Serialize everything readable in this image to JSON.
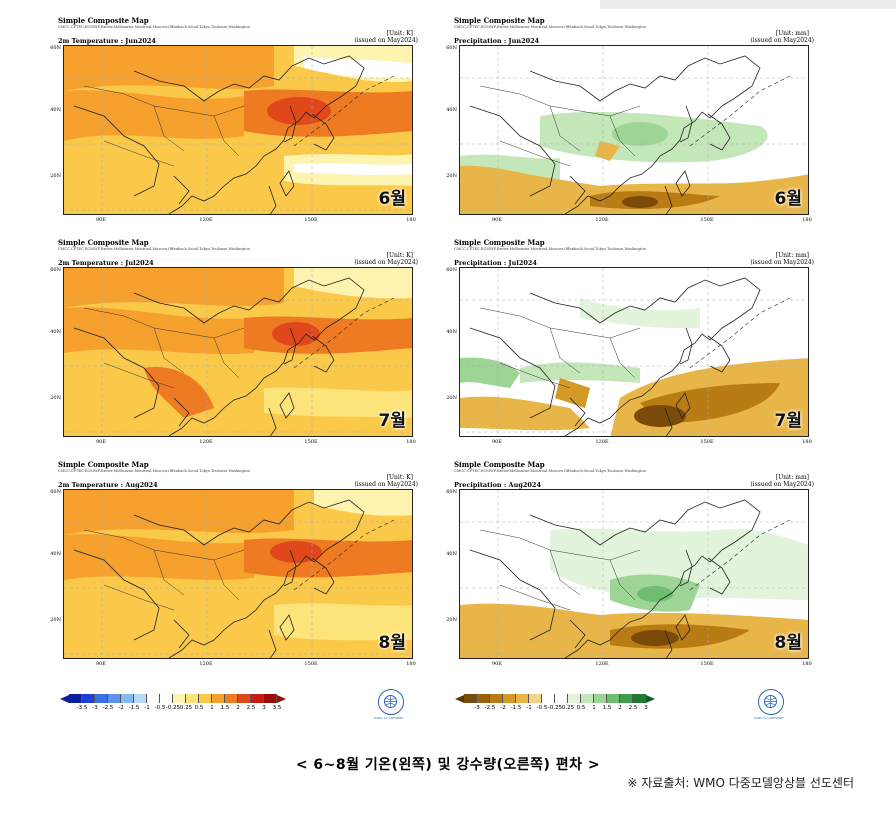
{
  "panels": [
    {
      "id": "t6",
      "title": "Simple Composite Map",
      "centers": "CMCC,CPTEC,ECMWF,Exeter,Melbourne,Montreal,Moscow,Offenbach,Seoul,Tokyo,Toulouse,Washington",
      "unit": "[Unit: K]",
      "variable": "2m Temperature : Jun2024",
      "issued": "(issued on May2024)",
      "month": "6월",
      "kind": "temp",
      "ylabels": [
        "60N",
        "40N",
        "20N"
      ],
      "xlabels": [
        "90E",
        "120E",
        "150E",
        "180"
      ]
    },
    {
      "id": "p6",
      "title": "Simple Composite Map",
      "centers": "CMCC,CPTEC,ECMWF,Exeter,Melbourne,Montreal,Moscow,Offenbach,Seoul,Tokyo,Toulouse,Washington",
      "unit": "[Unit: mm]",
      "variable": "Precipitation : Jun2024",
      "issued": "(issued on May2024)",
      "month": "6월",
      "kind": "precip",
      "ylabels": [
        "60N",
        "40N",
        "20N"
      ],
      "xlabels": [
        "90E",
        "120E",
        "150E",
        "180"
      ]
    },
    {
      "id": "t7",
      "title": "Simple Composite Map",
      "centers": "CMCC,CPTEC,ECMWF,Exeter,Melbourne,Montreal,Moscow,Offenbach,Seoul,Tokyo,Toulouse,Washington",
      "unit": "[Unit: K]",
      "variable": "2m Temperature : Jul2024",
      "issued": "(issued on May2024)",
      "month": "7월",
      "kind": "temp",
      "ylabels": [
        "60N",
        "40N",
        "20N"
      ],
      "xlabels": [
        "90E",
        "120E",
        "150E",
        "180"
      ]
    },
    {
      "id": "p7",
      "title": "Simple Composite Map",
      "centers": "CMCC,CPTEC,ECMWF,Exeter,Melbourne,Montreal,Moscow,Offenbach,Seoul,Tokyo,Toulouse,Washington",
      "unit": "[Unit: mm]",
      "variable": "Precipitation : Jul2024",
      "issued": "(issued on May2024)",
      "month": "7월",
      "kind": "precip",
      "ylabels": [
        "60N",
        "40N",
        "20N"
      ],
      "xlabels": [
        "90E",
        "120E",
        "150E",
        "180"
      ]
    },
    {
      "id": "t8",
      "title": "Simple Composite Map",
      "centers": "CMCC,CPTEC,ECMWF,Exeter,Melbourne,Montreal,Moscow,Offenbach,Seoul,Tokyo,Toulouse,Washington",
      "unit": "[Unit: K]",
      "variable": "2m Temperature : Aug2024",
      "issued": "(issued on May2024)",
      "month": "8월",
      "kind": "temp",
      "ylabels": [
        "60N",
        "40N",
        "20N"
      ],
      "xlabels": [
        "90E",
        "120E",
        "150E",
        "180"
      ]
    },
    {
      "id": "p8",
      "title": "Simple Composite Map",
      "centers": "CMCC,CPTEC,ECMWF,Exeter,Melbourne,Montreal,Moscow,Offenbach,Seoul,Tokyo,Toulouse,Washington",
      "unit": "[Unit: mm]",
      "variable": "Precipitation : Aug2024",
      "issued": "(issued on May2024)",
      "month": "8월",
      "kind": "precip",
      "ylabels": [
        "60N",
        "40N",
        "20N"
      ],
      "xlabels": [
        "90E",
        "120E",
        "150E",
        "180"
      ]
    }
  ],
  "colorbars": {
    "temp": {
      "ticks": [
        "-3.5",
        "-3",
        "-2.5",
        "-2",
        "-1.5",
        "-1",
        "-0.5",
        "-0.25",
        "0.25",
        "0.5",
        "1",
        "1.5",
        "2",
        "2.5",
        "3",
        "3.5"
      ],
      "colors": [
        "#0a1e9e",
        "#1e3fcf",
        "#3a6de6",
        "#5b93ef",
        "#86b8f4",
        "#b8d8fa",
        "#ffffff",
        "#ffffff",
        "#fff3b0",
        "#fde47a",
        "#fbc94a",
        "#f6a12e",
        "#ee7b22",
        "#e0481c",
        "#c81b12",
        "#9e0b0b"
      ],
      "end_left": "#0a1e9e",
      "end_right": "#9e0b0b"
    },
    "precip": {
      "ticks": [
        "-3",
        "-2.5",
        "-2",
        "-1.5",
        "-1",
        "-0.5",
        "-0.25",
        "0.25",
        "0.5",
        "1",
        "1.5",
        "2",
        "2.5",
        "3"
      ],
      "colors": [
        "#7a4a08",
        "#9a620e",
        "#b97c15",
        "#d39a26",
        "#e8b648",
        "#f3d58a",
        "#ffffff",
        "#ffffff",
        "#e3f4dd",
        "#c4e7b9",
        "#9dd594",
        "#6fbd6f",
        "#3f9c4c",
        "#1e7a35"
      ],
      "end_left": "#5c3505",
      "end_right": "#0f5e24"
    }
  },
  "wmo": {
    "caption": "WMO LC-LRFMME"
  },
  "caption": "< 6~8월 기온(왼쪽) 및 강수량(오른쪽) 편차 >",
  "source": "※ 자료출처: WMO 다중모델앙상블 선도센터"
}
